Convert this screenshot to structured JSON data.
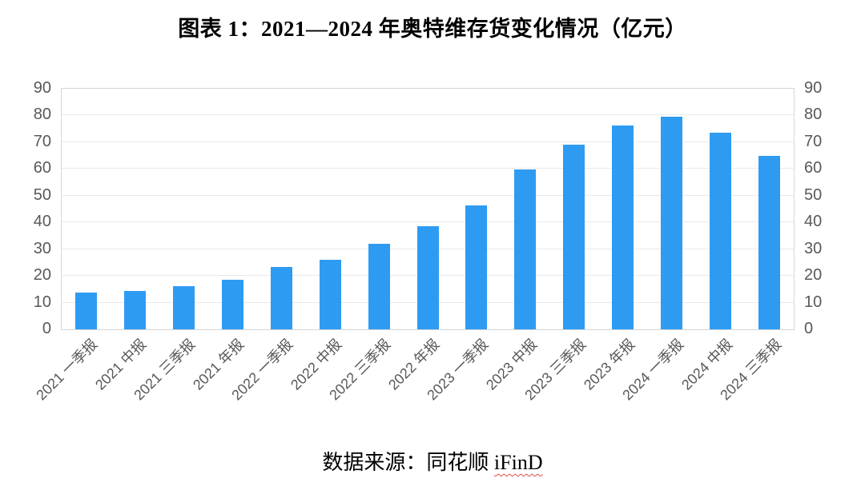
{
  "title": "图表 1：2021—2024 年奥特维存货变化情况（亿元）",
  "source": {
    "prefix": "数据来源：同花顺 ",
    "linked_text": "iFinD"
  },
  "chart_data": {
    "type": "bar",
    "title": "图表 1：2021—2024 年奥特维存货变化情况（亿元）",
    "categories": [
      "2021 一季报",
      "2021 中报",
      "2021 三季报",
      "2021 年报",
      "2022 一季报",
      "2022 中报",
      "2022 三季报",
      "2022 年报",
      "2023 一季报",
      "2023 中报",
      "2023 三季报",
      "2023 年报",
      "2024 一季报",
      "2024 中报",
      "2024 三季报"
    ],
    "values": [
      13.8,
      14.3,
      16.2,
      18.6,
      23.2,
      26.1,
      31.9,
      38.7,
      46.3,
      59.7,
      69.0,
      76.4,
      79.5,
      73.5,
      65.0
    ],
    "unit": "亿元",
    "xlabel": "",
    "ylabel": "",
    "ylim": [
      0,
      90
    ],
    "yticks": [
      0,
      10,
      20,
      30,
      40,
      50,
      60,
      70,
      80,
      90
    ],
    "grid": true,
    "dual_y_axis": true,
    "legend": "none",
    "bar_color": "#2e9bf2"
  },
  "colors": {
    "bar": "#2e9bf2",
    "axis_text": "#595959",
    "gridline": "#e9e9e9",
    "plot_border": "#d6d6d6",
    "title_text": "#000000",
    "wavy_underline": "#d94a43"
  }
}
